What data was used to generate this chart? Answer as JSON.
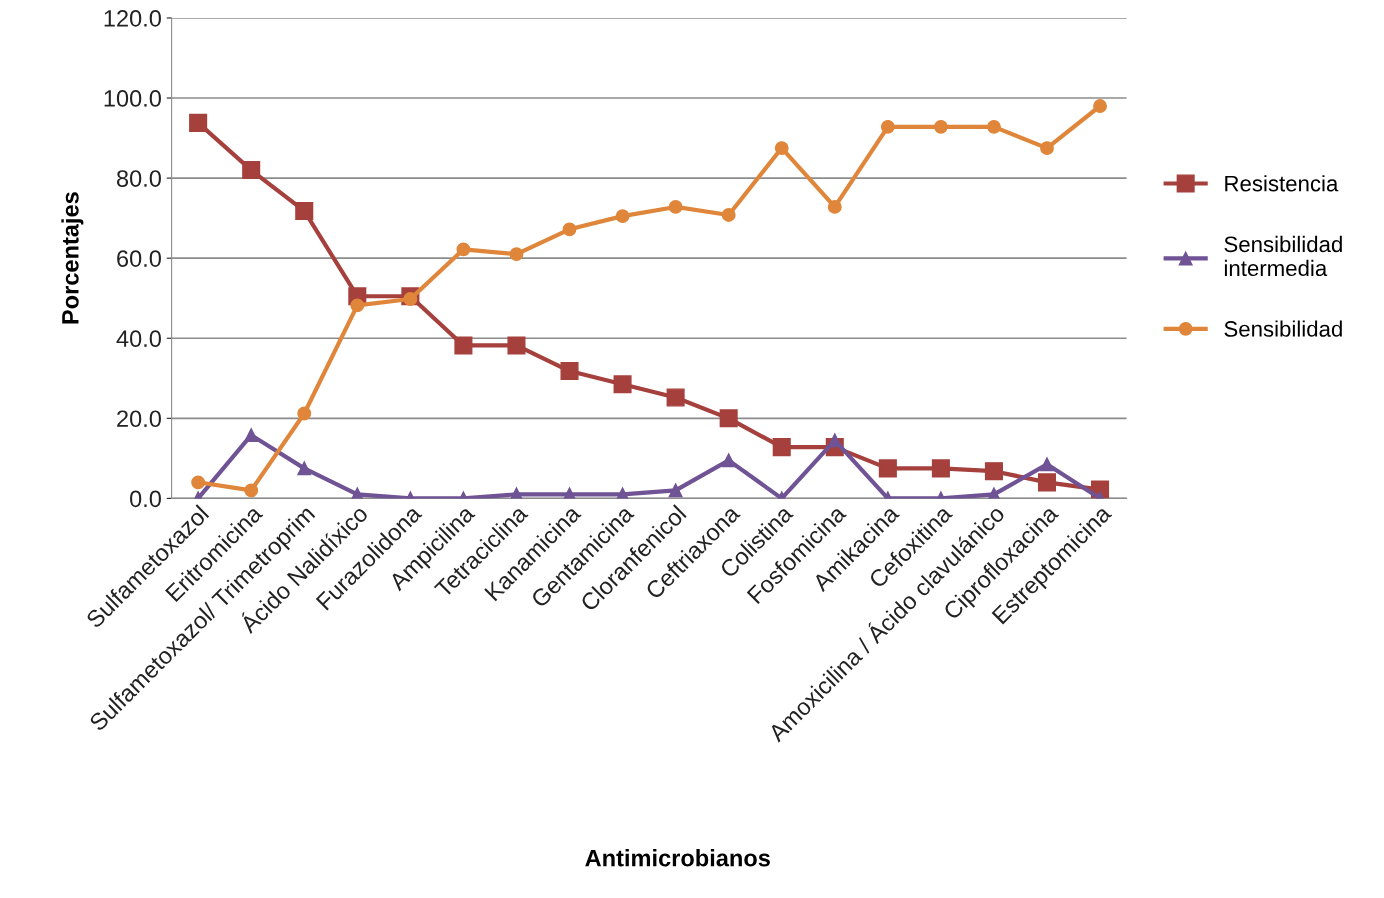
{
  "chart_data": {
    "type": "line",
    "xlabel": "Antimicrobianos",
    "ylabel": "Porcentajes",
    "categories": [
      "Sulfametoxazol",
      "Eritromicina",
      "Sulfametoxazol/ Trimetroprim",
      "Ácido Nalidíxico",
      "Furazolidona",
      "Ampicilina",
      "Tetraciclina",
      "Kanamicina",
      "Gentamicina",
      "Cloranfenicol",
      "Ceftriaxona",
      "Colistina",
      "Fosfomicina",
      "Amikacina",
      "Cefoxitina",
      "Amoxicilina / Ácido clavulánico",
      "Ciprofloxacina",
      "Estreptomicina"
    ],
    "series": [
      {
        "name": "Resistencia",
        "color": "#a5403d",
        "marker": "square",
        "values": [
          93.8,
          82.0,
          71.8,
          50.5,
          50.5,
          38.2,
          38.2,
          31.8,
          28.5,
          25.2,
          20.0,
          12.8,
          12.8,
          7.5,
          7.5,
          6.8,
          4.0,
          2.2
        ]
      },
      {
        "name": "Sensibilidad intermedia",
        "color": "#6f5395",
        "marker": "triangle",
        "values": [
          0.0,
          15.8,
          7.5,
          1.0,
          0.0,
          0.0,
          1.0,
          1.0,
          1.0,
          2.0,
          9.5,
          0.0,
          14.5,
          0.0,
          0.0,
          1.0,
          8.5,
          0.0
        ]
      },
      {
        "name": "Sensibilidad",
        "color": "#e0863a",
        "marker": "circle",
        "values": [
          4.0,
          2.0,
          21.2,
          48.2,
          49.8,
          62.2,
          61.0,
          67.2,
          70.5,
          72.8,
          70.8,
          87.5,
          72.8,
          92.8,
          92.8,
          92.8,
          87.5,
          98.0
        ]
      }
    ],
    "ylim": [
      0,
      120
    ],
    "yticks": [
      {
        "value": 0,
        "label": "0.0"
      },
      {
        "value": 20,
        "label": "20.0"
      },
      {
        "value": 40,
        "label": "40.0"
      },
      {
        "value": 60,
        "label": "60.0"
      },
      {
        "value": 80,
        "label": "80.0"
      },
      {
        "value": 100,
        "label": "100.0"
      },
      {
        "value": 120,
        "label": "120.0"
      }
    ],
    "grid": "y",
    "legend": "right"
  }
}
